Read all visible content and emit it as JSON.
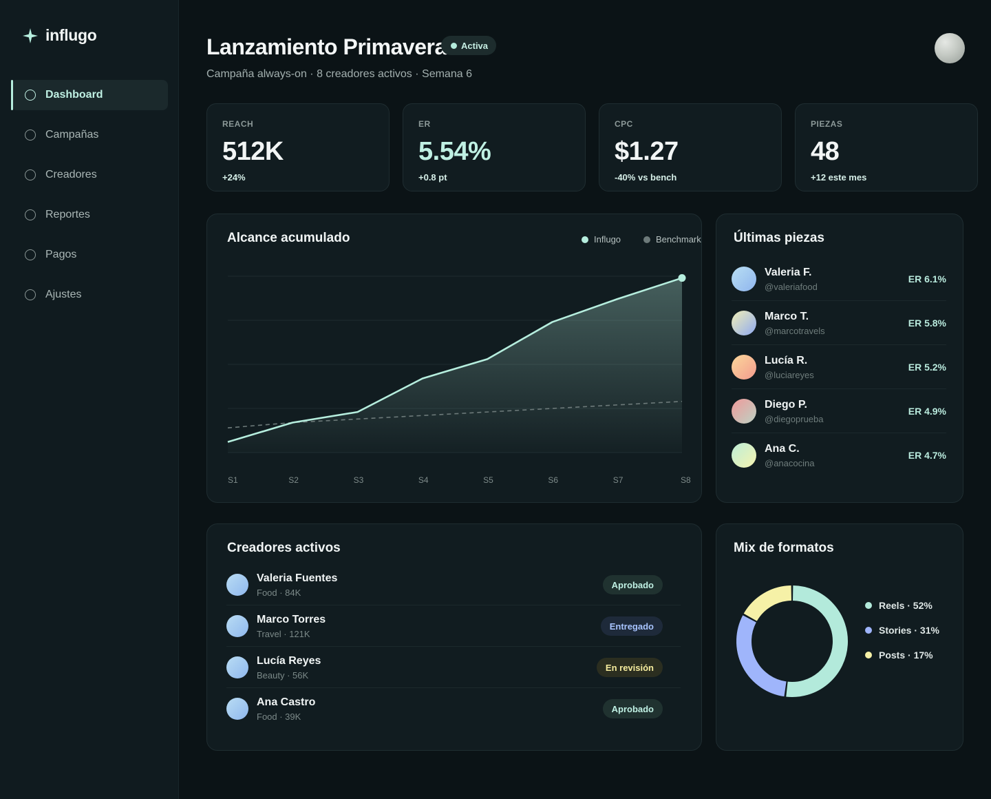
{
  "app": {
    "brand": "influgo",
    "accent": "#b6eede"
  },
  "sidebar": {
    "items": [
      {
        "label": "Dashboard",
        "active": true
      },
      {
        "label": "Campañas",
        "active": false
      },
      {
        "label": "Creadores",
        "active": false
      },
      {
        "label": "Reportes",
        "active": false
      },
      {
        "label": "Pagos",
        "active": false
      },
      {
        "label": "Ajustes",
        "active": false
      }
    ]
  },
  "header": {
    "title": "Lanzamiento Primavera",
    "status": "Activa",
    "subtitle": "Campaña always-on · 8 creadores activos · Semana 6"
  },
  "kpis": [
    {
      "label": "REACH",
      "value": "512K",
      "delta": "+24%"
    },
    {
      "label": "ER",
      "value": "5.54%",
      "delta": "+0.8 pt"
    },
    {
      "label": "CPC",
      "value": "$1.27",
      "delta": "-40% vs bench"
    },
    {
      "label": "PIEZAS",
      "value": "48",
      "delta": "+12 este mes"
    }
  ],
  "reach_panel": {
    "title": "Alcance acumulado"
  },
  "chart_data": {
    "type": "line",
    "title": "Alcance acumulado",
    "categories": [
      "S1",
      "S2",
      "S3",
      "S4",
      "S5",
      "S6",
      "S7",
      "S8"
    ],
    "ylim": [
      0,
      100
    ],
    "grid": true,
    "legend_position": "top-right",
    "series": [
      {
        "name": "Influgo",
        "color": "#b6eede",
        "style": "solid-area",
        "values": [
          6,
          17,
          23,
          42,
          53,
          74,
          87,
          99
        ]
      },
      {
        "name": "Benchmark",
        "color": "#6d7a7a",
        "style": "dashed",
        "values": [
          14,
          17,
          19,
          21,
          23,
          25,
          27,
          29
        ]
      }
    ]
  },
  "pieces": {
    "title": "Últimas piezas",
    "items": [
      {
        "name": "Valeria F.",
        "handle": "@valeriafood",
        "er": "ER 6.1%",
        "grad": [
          "#b9dff3",
          "#8fb5ee"
        ]
      },
      {
        "name": "Marco T.",
        "handle": "@marcotravels",
        "er": "ER 5.8%",
        "grad": [
          "#f1efb7",
          "#8faaf0"
        ]
      },
      {
        "name": "Lucía R.",
        "handle": "@luciareyes",
        "er": "ER 5.2%",
        "grad": [
          "#fbd89b",
          "#f39b8e"
        ]
      },
      {
        "name": "Diego P.",
        "handle": "@diegoprueba",
        "er": "ER 4.9%",
        "grad": [
          "#ef9a9a",
          "#bdd2c4"
        ]
      },
      {
        "name": "Ana C.",
        "handle": "@anacocina",
        "er": "ER 4.7%",
        "grad": [
          "#bdeed8",
          "#f5f3b0"
        ]
      }
    ]
  },
  "creators": {
    "title": "Creadores activos",
    "rows": [
      {
        "name": "Valeria Fuentes",
        "meta": "Food · 84K",
        "status": "Aprobado",
        "status_color": "#bff0e3",
        "status_bg": "#203230"
      },
      {
        "name": "Marco Torres",
        "meta": "Travel · 121K",
        "status": "Entregado",
        "status_color": "#a8c4ff",
        "status_bg": "#1e2a3a"
      },
      {
        "name": "Lucía Reyes",
        "meta": "Beauty · 56K",
        "status": "En revisión",
        "status_color": "#f5ec9e",
        "status_bg": "#2b2e20"
      },
      {
        "name": "Ana Castro",
        "meta": "Food · 39K",
        "status": "Aprobado",
        "status_color": "#bff0e3",
        "status_bg": "#203230"
      }
    ]
  },
  "formats": {
    "title": "Mix de formatos",
    "chart_data": {
      "type": "pie",
      "variant": "donut",
      "slices": [
        {
          "label": "Reels · 52%",
          "value": 52,
          "color": "#b3eadb"
        },
        {
          "label": "Stories · 31%",
          "value": 31,
          "color": "#9fb5fb"
        },
        {
          "label": "Posts · 17%",
          "value": 17,
          "color": "#f6f1a7"
        }
      ]
    }
  }
}
